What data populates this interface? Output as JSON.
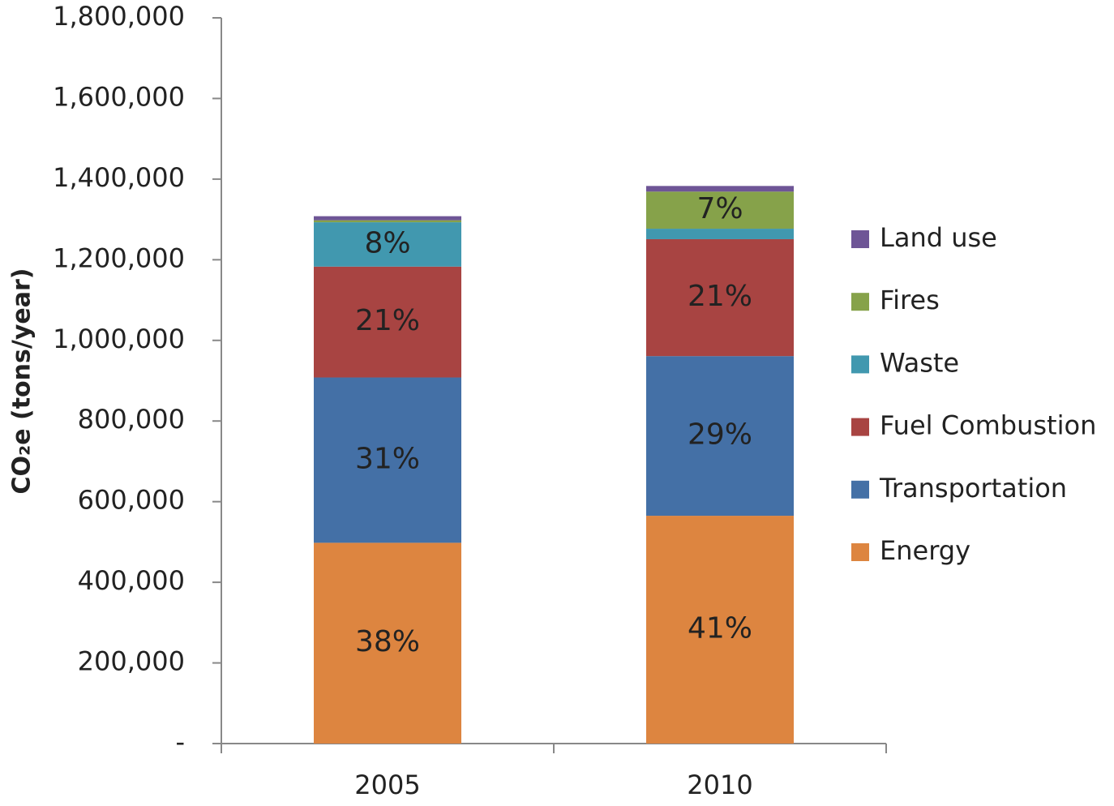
{
  "chart_data": {
    "type": "stacked_bar",
    "y_label": "CO₂e (tons/year)",
    "categories": [
      "2005",
      "2010"
    ],
    "series": [
      {
        "name": "Energy",
        "color": "#dd8540",
        "values": [
          498000,
          565000
        ],
        "labels": [
          "38%",
          "41%"
        ]
      },
      {
        "name": "Transportation",
        "color": "#4470a6",
        "values": [
          410000,
          396000
        ],
        "labels": [
          "31%",
          "29%"
        ]
      },
      {
        "name": "Fuel Combustion",
        "color": "#a84442",
        "values": [
          275000,
          290000
        ],
        "labels": [
          "21%",
          "21%"
        ]
      },
      {
        "name": "Waste",
        "color": "#4198af",
        "values": [
          110000,
          26000
        ],
        "labels": [
          "8%",
          null
        ]
      },
      {
        "name": "Fires",
        "color": "#86a24a",
        "values": [
          5000,
          92000
        ],
        "labels": [
          null,
          "7%"
        ]
      },
      {
        "name": "Land use",
        "color": "#6e5596",
        "values": [
          10000,
          14000
        ],
        "labels": [
          null,
          null
        ]
      }
    ],
    "ylim": [
      0,
      1800000
    ],
    "yticks": [
      {
        "value": 0,
        "label": "-"
      },
      {
        "value": 200000,
        "label": "200,000"
      },
      {
        "value": 400000,
        "label": "400,000"
      },
      {
        "value": 600000,
        "label": "600,000"
      },
      {
        "value": 800000,
        "label": "800,000"
      },
      {
        "value": 1000000,
        "label": "1,000,000"
      },
      {
        "value": 1200000,
        "label": "1,200,000"
      },
      {
        "value": 1400000,
        "label": "1,400,000"
      },
      {
        "value": 1600000,
        "label": "1,600,000"
      },
      {
        "value": 1800000,
        "label": "1,800,000"
      }
    ],
    "legend": "right"
  }
}
